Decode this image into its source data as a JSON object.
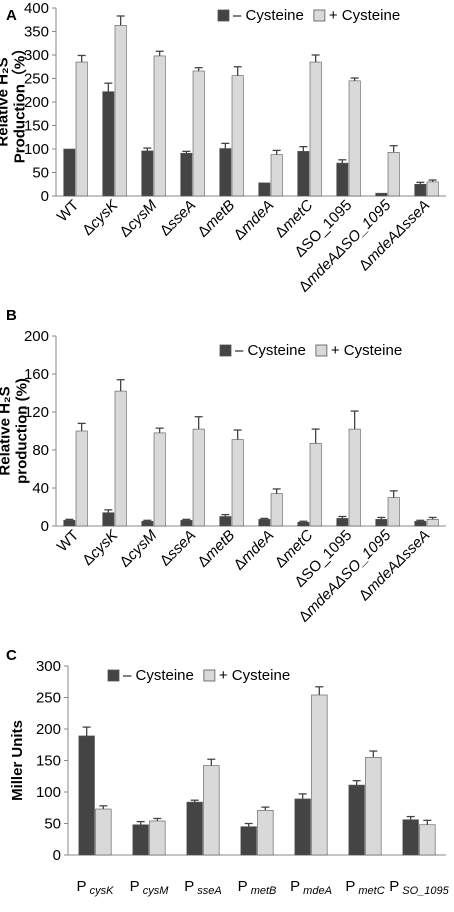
{
  "colors": {
    "minus": "#444444",
    "plus": "#d9d9d9",
    "outline": "#555555",
    "error": "#444444",
    "axis": "#888888"
  },
  "chart_data": [
    {
      "panel": "A",
      "type": "bar",
      "ylabel": [
        "Relative H₂S",
        "Production（%）"
      ],
      "ylim": [
        0,
        400
      ],
      "yticks": [
        0,
        50,
        100,
        150,
        200,
        250,
        300,
        350,
        400
      ],
      "legend_position": "top-right",
      "categories": [
        {
          "prefix": "",
          "main": "WT",
          "italic": false,
          "sub": ""
        },
        {
          "prefix": "Δ",
          "main": "cysK",
          "italic": true,
          "sub": ""
        },
        {
          "prefix": "Δ",
          "main": "cysM",
          "italic": true,
          "sub": ""
        },
        {
          "prefix": "Δ",
          "main": "sseA",
          "italic": true,
          "sub": ""
        },
        {
          "prefix": "Δ",
          "main": "metB",
          "italic": true,
          "sub": ""
        },
        {
          "prefix": "Δ",
          "main": "mdeA",
          "italic": true,
          "sub": ""
        },
        {
          "prefix": "Δ",
          "main": "metC",
          "italic": true,
          "sub": ""
        },
        {
          "prefix": "Δ",
          "main": "SO_1095",
          "italic": false,
          "sub": ""
        },
        {
          "prefix": "Δ",
          "main": "mdeAΔSO_1095",
          "italic": true,
          "sub": ""
        },
        {
          "prefix": "Δ",
          "main": "mdeAΔsseA",
          "italic": true,
          "sub": ""
        }
      ],
      "series": [
        {
          "name": "– Cysteine",
          "values": [
            100,
            222,
            96,
            91,
            101,
            28,
            95,
            70,
            6,
            25
          ],
          "errors": [
            0,
            18,
            6,
            4,
            11,
            0,
            10,
            7,
            0,
            4
          ]
        },
        {
          "name": "+ Cysteine",
          "values": [
            285,
            363,
            298,
            266,
            256,
            88,
            285,
            245,
            93,
            30
          ],
          "errors": [
            14,
            20,
            10,
            7,
            19,
            9,
            15,
            6,
            14,
            4
          ]
        }
      ]
    },
    {
      "panel": "B",
      "type": "bar",
      "ylabel": [
        "Relative H₂S",
        "production (%)"
      ],
      "ylim": [
        0,
        200
      ],
      "yticks": [
        0,
        40,
        80,
        120,
        160,
        200
      ],
      "legend_position": "top-right",
      "categories": [
        {
          "prefix": "",
          "main": "WT",
          "italic": false,
          "sub": ""
        },
        {
          "prefix": "Δ",
          "main": "cysK",
          "italic": true,
          "sub": ""
        },
        {
          "prefix": "Δ",
          "main": "cysM",
          "italic": true,
          "sub": ""
        },
        {
          "prefix": "Δ",
          "main": "sseA",
          "italic": true,
          "sub": ""
        },
        {
          "prefix": "Δ",
          "main": "metB",
          "italic": true,
          "sub": ""
        },
        {
          "prefix": "Δ",
          "main": "mdeA",
          "italic": true,
          "sub": ""
        },
        {
          "prefix": "Δ",
          "main": "metC",
          "italic": true,
          "sub": ""
        },
        {
          "prefix": "Δ",
          "main": "SO_1095",
          "italic": false,
          "sub": ""
        },
        {
          "prefix": "Δ",
          "main": "mdeAΔSO_1095",
          "italic": true,
          "sub": ""
        },
        {
          "prefix": "Δ",
          "main": "mdeAΔsseA",
          "italic": true,
          "sub": ""
        }
      ],
      "series": [
        {
          "name": "– Cysteine",
          "values": [
            6,
            14,
            5,
            6,
            10,
            7,
            4,
            8,
            7,
            5
          ],
          "errors": [
            1,
            3,
            1,
            1,
            2,
            1,
            1,
            2,
            2,
            1
          ]
        },
        {
          "name": "+ Cysteine",
          "values": [
            100,
            142,
            98,
            102,
            91,
            34,
            87,
            102,
            30,
            7
          ],
          "errors": [
            8,
            12,
            5,
            13,
            10,
            5,
            15,
            19,
            7,
            2
          ]
        }
      ]
    },
    {
      "panel": "C",
      "type": "bar",
      "ylabel": [
        "Miller Units"
      ],
      "ylim": [
        0,
        300
      ],
      "yticks": [
        0,
        50,
        100,
        150,
        200,
        250,
        300
      ],
      "legend_position": "top-left",
      "categories": [
        {
          "prefix": "",
          "main": "P",
          "italic": false,
          "sub": "cysK"
        },
        {
          "prefix": "",
          "main": "P",
          "italic": false,
          "sub": "cysM"
        },
        {
          "prefix": "",
          "main": "P",
          "italic": false,
          "sub": "sseA"
        },
        {
          "prefix": "",
          "main": "P",
          "italic": false,
          "sub": "metB"
        },
        {
          "prefix": "",
          "main": "P",
          "italic": false,
          "sub": "mdeA"
        },
        {
          "prefix": "",
          "main": "P",
          "italic": false,
          "sub": "metC"
        },
        {
          "prefix": "",
          "main": "P",
          "italic": false,
          "sub": "SO_1095"
        }
      ],
      "series": [
        {
          "name": "– Cysteine",
          "values": [
            189,
            48,
            84,
            45,
            89,
            111,
            56
          ],
          "errors": [
            14,
            5,
            3,
            5,
            8,
            7,
            5
          ]
        },
        {
          "name": "+ Cysteine",
          "values": [
            73,
            54,
            142,
            71,
            254,
            155,
            48
          ],
          "errors": [
            5,
            4,
            10,
            5,
            13,
            10,
            7
          ]
        }
      ]
    }
  ]
}
